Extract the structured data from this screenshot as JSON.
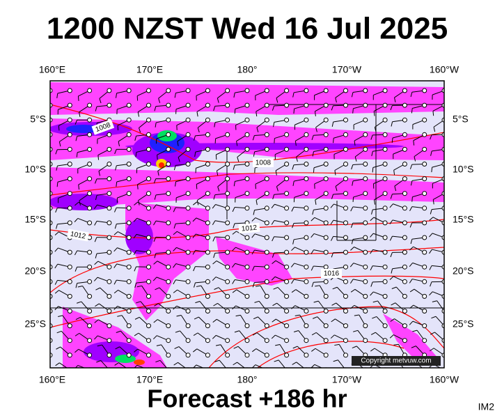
{
  "header": {
    "title": "1200 NZST Wed 16 Jul 2025"
  },
  "map": {
    "top_labels": [
      "160°E",
      "170°E",
      "180°",
      "170°W",
      "160°W"
    ],
    "bottom_labels": [
      "160°E",
      "170°E",
      "180°",
      "170°W",
      "160°W"
    ],
    "left_labels": [
      "5°S",
      "10°S",
      "15°S",
      "20°S",
      "25°S"
    ],
    "right_labels": [
      "5°S",
      "10°S",
      "15°S",
      "20°S",
      "25°S"
    ],
    "isobar_labels": [
      "1008",
      "1008",
      "1012",
      "1012",
      "1016"
    ],
    "copyright": "Copyright metvuw.com"
  },
  "footer": {
    "forecast": "Forecast +186 hr",
    "code": "IM2"
  }
}
